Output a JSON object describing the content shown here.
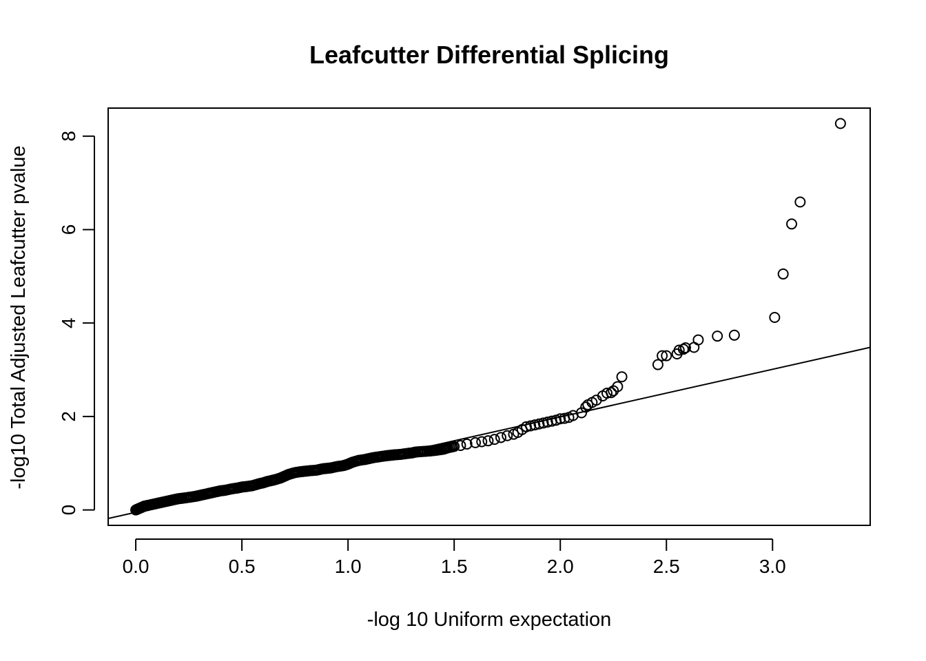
{
  "chart_data": {
    "type": "scatter",
    "title": "Leafcutter Differential Splicing",
    "xlabel": "-log 10 Uniform expectation",
    "ylabel": "-log10 Total Adjusted Leafcutter pvalue",
    "xlim": [
      -0.13,
      3.46
    ],
    "ylim": [
      -0.33,
      8.6
    ],
    "xticks": [
      0.0,
      0.5,
      1.0,
      1.5,
      2.0,
      2.5,
      3.0
    ],
    "xtick_labels": [
      "0.0",
      "0.5",
      "1.0",
      "1.5",
      "2.0",
      "2.5",
      "3.0"
    ],
    "yticks": [
      0,
      2,
      4,
      6,
      8
    ],
    "ytick_labels": [
      "0",
      "2",
      "4",
      "6",
      "8"
    ],
    "grid": false,
    "legend": "none",
    "reference_line": {
      "intercept": -0.05,
      "slope": 1.02
    },
    "points": {
      "x": [
        0.0,
        0.01,
        0.02,
        0.03,
        0.04,
        0.05,
        0.06,
        0.08,
        0.1,
        0.12,
        0.14,
        0.16,
        0.18,
        0.2,
        0.22,
        0.25,
        0.28,
        0.3,
        0.32,
        0.35,
        0.38,
        0.4,
        0.42,
        0.45,
        0.48,
        0.5,
        0.52,
        0.55,
        0.58,
        0.6,
        0.62,
        0.65,
        0.68,
        0.7,
        0.72,
        0.75,
        0.78,
        0.8,
        0.82,
        0.85,
        0.88,
        0.9,
        0.92,
        0.95,
        0.98,
        1.0,
        1.02,
        1.05,
        1.08,
        1.1,
        1.12,
        1.15,
        1.18,
        1.2,
        1.22,
        1.25,
        1.28,
        1.3,
        1.32,
        1.35,
        1.38,
        1.4,
        1.42,
        1.45,
        1.47,
        1.5,
        1.53,
        1.56,
        1.6,
        1.63,
        1.66,
        1.69,
        1.72,
        1.75,
        1.78,
        1.8,
        1.82,
        1.84,
        1.86,
        1.88,
        1.9,
        1.92,
        1.94,
        1.96,
        1.98,
        2.0,
        2.02,
        2.04,
        2.06,
        2.1,
        2.12,
        2.13,
        2.15,
        2.17,
        2.2,
        2.22,
        2.24,
        2.25,
        2.27,
        2.29,
        2.46,
        2.48,
        2.5,
        2.55,
        2.56,
        2.58,
        2.59,
        2.63,
        2.65,
        2.74,
        2.82,
        3.01,
        3.05,
        3.09,
        3.13,
        3.32
      ],
      "y": [
        0.0,
        0.02,
        0.04,
        0.06,
        0.08,
        0.09,
        0.1,
        0.12,
        0.14,
        0.16,
        0.18,
        0.2,
        0.22,
        0.24,
        0.25,
        0.27,
        0.29,
        0.31,
        0.33,
        0.36,
        0.39,
        0.41,
        0.42,
        0.45,
        0.47,
        0.49,
        0.5,
        0.52,
        0.56,
        0.58,
        0.61,
        0.64,
        0.68,
        0.72,
        0.76,
        0.8,
        0.82,
        0.83,
        0.84,
        0.85,
        0.88,
        0.89,
        0.9,
        0.93,
        0.95,
        0.98,
        1.02,
        1.06,
        1.08,
        1.1,
        1.12,
        1.14,
        1.16,
        1.17,
        1.18,
        1.19,
        1.21,
        1.22,
        1.24,
        1.25,
        1.26,
        1.27,
        1.28,
        1.3,
        1.33,
        1.36,
        1.38,
        1.41,
        1.44,
        1.46,
        1.48,
        1.51,
        1.55,
        1.59,
        1.62,
        1.66,
        1.72,
        1.78,
        1.8,
        1.82,
        1.84,
        1.86,
        1.88,
        1.9,
        1.92,
        1.95,
        1.96,
        1.98,
        2.02,
        2.08,
        2.2,
        2.25,
        2.3,
        2.35,
        2.44,
        2.5,
        2.51,
        2.55,
        2.64,
        2.85,
        3.11,
        3.3,
        3.3,
        3.34,
        3.42,
        3.44,
        3.47,
        3.48,
        3.64,
        3.72,
        3.74,
        4.12,
        5.05,
        6.12,
        6.59,
        8.27
      ]
    }
  }
}
